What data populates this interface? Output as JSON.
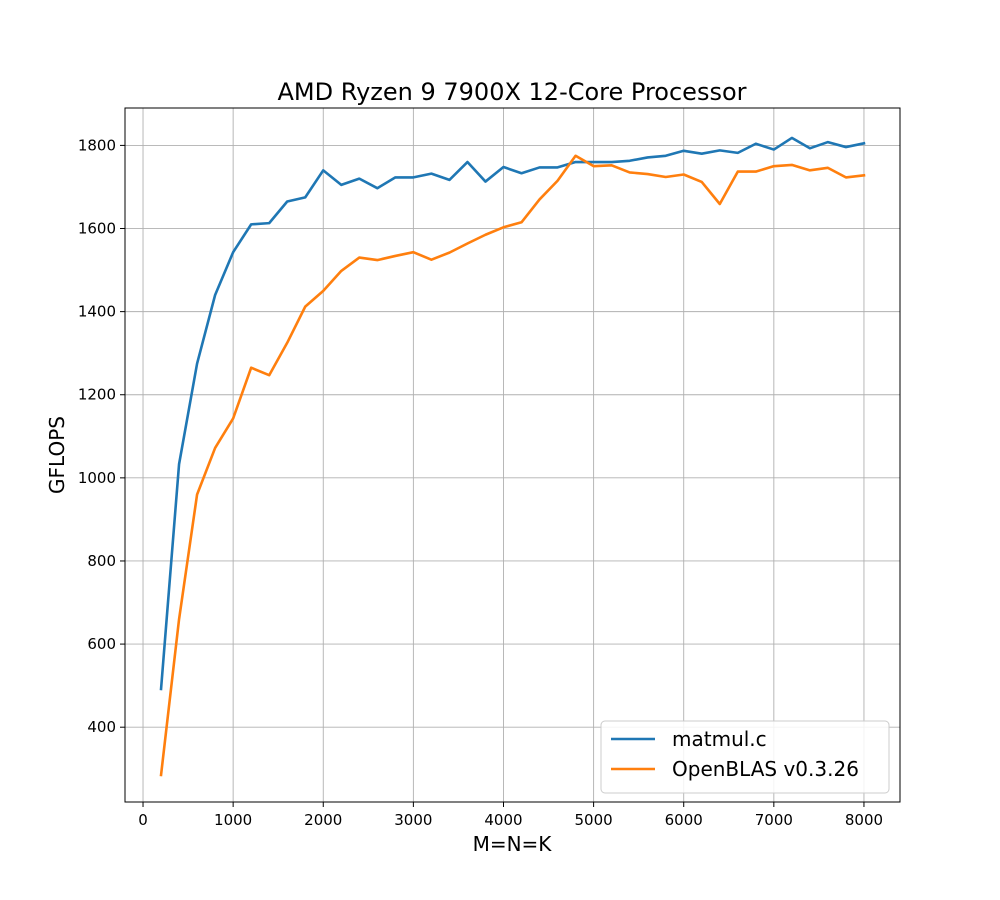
{
  "chart_data": {
    "type": "line",
    "title": "AMD Ryzen 9 7900X 12-Core Processor",
    "xlabel": "M=N=K",
    "ylabel": "GFLOPS",
    "xlim": [
      -200,
      8400
    ],
    "ylim": [
      220,
      1890
    ],
    "xticks": [
      0,
      1000,
      2000,
      3000,
      4000,
      5000,
      6000,
      7000,
      8000
    ],
    "yticks": [
      400,
      600,
      800,
      1000,
      1200,
      1400,
      1600,
      1800
    ],
    "grid": true,
    "legend_position": "lower-right",
    "x": [
      200,
      400,
      600,
      800,
      1000,
      1200,
      1400,
      1600,
      1800,
      2000,
      2200,
      2400,
      2600,
      2800,
      3000,
      3200,
      3400,
      3600,
      3800,
      4000,
      4200,
      4400,
      4600,
      4800,
      5000,
      5200,
      5400,
      5600,
      5800,
      6000,
      6200,
      6400,
      6600,
      6800,
      7000,
      7200,
      7400,
      7600,
      7800,
      8000
    ],
    "series": [
      {
        "name": "matmul.c",
        "color": "#1f77b4",
        "values": [
          492,
          1033,
          1275,
          1440,
          1543,
          1610,
          1613,
          1665,
          1675,
          1740,
          1705,
          1720,
          1697,
          1723,
          1723,
          1732,
          1717,
          1760,
          1713,
          1748,
          1733,
          1747,
          1747,
          1760,
          1760,
          1760,
          1763,
          1771,
          1775,
          1787,
          1780,
          1788,
          1782,
          1804,
          1790,
          1818,
          1793,
          1808,
          1796,
          1805
        ]
      },
      {
        "name": "OpenBLAS v0.3.26",
        "color": "#ff7f0e",
        "values": [
          285,
          660,
          960,
          1072,
          1143,
          1265,
          1247,
          1325,
          1412,
          1450,
          1498,
          1530,
          1524,
          1534,
          1543,
          1525,
          1542,
          1564,
          1585,
          1603,
          1615,
          1670,
          1715,
          1775,
          1750,
          1752,
          1735,
          1731,
          1724,
          1730,
          1712,
          1659,
          1737,
          1737,
          1750,
          1753,
          1740,
          1746,
          1723,
          1728
        ]
      }
    ]
  }
}
